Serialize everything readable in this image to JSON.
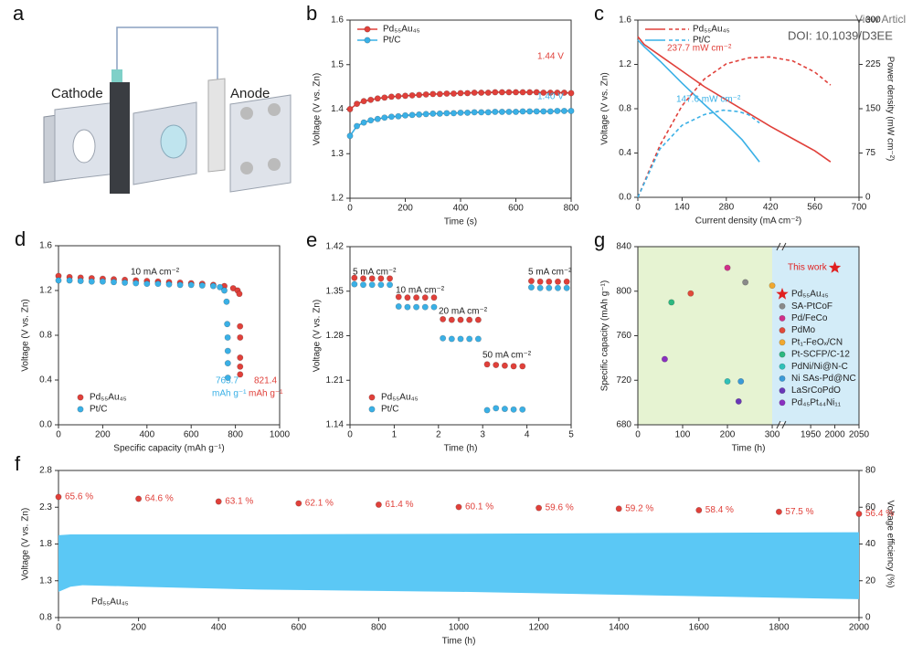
{
  "header": {
    "link": "View Articl",
    "doi": "DOI: 10.1039/D3EE"
  },
  "illustration": {
    "panel": "a",
    "labels": [
      "Cathode",
      "Anode"
    ]
  },
  "chart_data": [
    {
      "panel": "b",
      "type": "line",
      "xlabel": "Time (s)",
      "ylabel": "Voltage (V vs. Zn)",
      "xlim": [
        0,
        800
      ],
      "xticks": [
        0,
        200,
        400,
        600,
        800
      ],
      "ylim": [
        1.2,
        1.6
      ],
      "yticks": [
        1.2,
        1.3,
        1.4,
        1.5,
        1.6
      ],
      "legend": "upper left",
      "x": [
        0,
        25,
        50,
        75,
        100,
        125,
        150,
        175,
        200,
        225,
        250,
        275,
        300,
        325,
        350,
        375,
        400,
        425,
        450,
        475,
        500,
        525,
        550,
        575,
        600,
        625,
        650,
        675,
        700,
        725,
        750,
        775,
        800
      ],
      "series": [
        {
          "name": "Pd₅₅Au₄₅",
          "color": "#e0403a",
          "marker": "circle",
          "values": [
            1.4,
            1.412,
            1.418,
            1.421,
            1.424,
            1.426,
            1.428,
            1.429,
            1.43,
            1.431,
            1.432,
            1.433,
            1.434,
            1.434,
            1.435,
            1.435,
            1.436,
            1.436,
            1.437,
            1.437,
            1.437,
            1.438,
            1.438,
            1.438,
            1.438,
            1.438,
            1.438,
            1.438,
            1.437,
            1.437,
            1.437,
            1.437,
            1.436
          ]
        },
        {
          "name": "Pt/C",
          "color": "#3ab0e6",
          "marker": "circle",
          "values": [
            1.34,
            1.362,
            1.37,
            1.375,
            1.378,
            1.381,
            1.383,
            1.384,
            1.386,
            1.387,
            1.388,
            1.389,
            1.39,
            1.39,
            1.391,
            1.391,
            1.392,
            1.392,
            1.393,
            1.393,
            1.393,
            1.394,
            1.394,
            1.394,
            1.394,
            1.395,
            1.395,
            1.395,
            1.395,
            1.395,
            1.396,
            1.396,
            1.396
          ]
        }
      ],
      "annotations": [
        {
          "text": "1.44 V",
          "color": "#e0403a"
        },
        {
          "text": "1.40 V",
          "color": "#3ab0e6"
        }
      ]
    },
    {
      "panel": "c",
      "type": "line",
      "xlabel": "Current density (mA cm⁻²)",
      "ylabel": "Voltage (V vs. Zn)",
      "y2label": "Power density (mW cm⁻²)",
      "xlim": [
        0,
        700
      ],
      "xticks": [
        0,
        140,
        280,
        420,
        560,
        700
      ],
      "ylim": [
        0,
        1.6
      ],
      "yticks": [
        {
          "value": 0,
          "label": "0.0"
        },
        0.4,
        0.8,
        1.2,
        1.6
      ],
      "y2lim": [
        0,
        300
      ],
      "y2ticks": [
        0,
        75,
        150,
        225,
        300
      ],
      "legend": "upper left",
      "series": [
        {
          "name": "Pd₅₅Au₄₅",
          "color": "#e0403a",
          "x": [
            0,
            20,
            70,
            140,
            210,
            280,
            350,
            420,
            490,
            560,
            610
          ],
          "values": [
            1.45,
            1.38,
            1.28,
            1.14,
            1.0,
            0.88,
            0.76,
            0.64,
            0.53,
            0.42,
            0.32
          ]
        },
        {
          "name": "Pt/C",
          "color": "#3ab0e6",
          "x": [
            0,
            20,
            70,
            140,
            210,
            280,
            330,
            385
          ],
          "values": [
            1.42,
            1.36,
            1.23,
            1.03,
            0.84,
            0.66,
            0.52,
            0.32
          ]
        },
        {
          "color": "#e0403a",
          "dashed": true,
          "axis": "y2",
          "x": [
            0,
            70,
            140,
            210,
            280,
            350,
            415,
            490,
            560,
            610
          ],
          "values": [
            0,
            88,
            155,
            200,
            226,
            236,
            237.7,
            231,
            212,
            190
          ]
        },
        {
          "color": "#3ab0e6",
          "dashed": true,
          "axis": "y2",
          "x": [
            0,
            70,
            140,
            210,
            270,
            320,
            350,
            385
          ],
          "values": [
            0,
            82,
            122,
            140,
            147.6,
            145,
            140,
            126
          ]
        }
      ],
      "annotations": [
        {
          "text": "237.7 mW cm⁻²",
          "color": "#e0403a"
        },
        {
          "text": "147.6 mW cm⁻²",
          "color": "#3ab0e6"
        }
      ]
    },
    {
      "panel": "d",
      "type": "scatter",
      "xlabel": "Specific capacity (mAh g⁻¹)",
      "ylabel": "Voltage (V vs. Zn)",
      "xlim": [
        0,
        1000
      ],
      "xticks": [
        0,
        200,
        400,
        600,
        800,
        1000
      ],
      "ylim": [
        0,
        1.6
      ],
      "yticks": [
        {
          "value": 0,
          "label": "0.0"
        },
        0.4,
        0.8,
        1.2,
        1.6
      ],
      "legend": "lower left",
      "series": [
        {
          "name": "Pd₅₅Au₄₅",
          "color": "#e0403a",
          "marker": "circle",
          "x": [
            0,
            50,
            100,
            150,
            200,
            250,
            300,
            350,
            400,
            450,
            500,
            550,
            600,
            650,
            700,
            750,
            790,
            810,
            818,
            821,
            821.4,
            821.4,
            821.4,
            821.4
          ],
          "values": [
            1.33,
            1.32,
            1.315,
            1.31,
            1.305,
            1.3,
            1.295,
            1.29,
            1.285,
            1.28,
            1.275,
            1.27,
            1.265,
            1.26,
            1.25,
            1.24,
            1.22,
            1.2,
            1.17,
            0.88,
            0.78,
            0.6,
            0.52,
            0.45
          ]
        },
        {
          "name": "Pt/C",
          "color": "#3ab0e6",
          "marker": "circle",
          "x": [
            0,
            50,
            100,
            150,
            200,
            250,
            300,
            350,
            400,
            450,
            500,
            550,
            600,
            650,
            700,
            730,
            750,
            760,
            763,
            765,
            765.7,
            765.7,
            765.7
          ],
          "values": [
            1.29,
            1.29,
            1.285,
            1.28,
            1.28,
            1.275,
            1.27,
            1.265,
            1.26,
            1.26,
            1.255,
            1.25,
            1.25,
            1.245,
            1.24,
            1.23,
            1.2,
            1.1,
            0.9,
            0.78,
            0.66,
            0.55,
            0.42
          ]
        }
      ],
      "annotations": [
        {
          "text": "10 mA cm⁻²",
          "color": "#222"
        },
        {
          "text": "765.7",
          "color": "#3ab0e6"
        },
        {
          "text": "mAh g⁻¹",
          "color": "#3ab0e6"
        },
        {
          "text": "821.4",
          "color": "#e0403a"
        },
        {
          "text": "mAh g⁻¹",
          "color": "#e0403a"
        }
      ]
    },
    {
      "panel": "e",
      "type": "scatter",
      "xlabel": "Time (h)",
      "ylabel": "Voltage (V vs. Zn)",
      "xlim": [
        0,
        5
      ],
      "xticks": [
        0,
        1,
        2,
        3,
        4,
        5
      ],
      "ylim": [
        1.14,
        1.42
      ],
      "yticks": [
        1.14,
        1.21,
        1.28,
        1.35,
        1.42
      ],
      "legend": "lower left",
      "x": [
        0.1,
        0.3,
        0.5,
        0.7,
        0.9,
        1.1,
        1.3,
        1.5,
        1.7,
        1.9,
        2.1,
        2.3,
        2.5,
        2.7,
        2.9,
        3.1,
        3.3,
        3.5,
        3.7,
        3.9,
        4.1,
        4.3,
        4.5,
        4.7,
        4.9
      ],
      "series": [
        {
          "name": "Pd₅₅Au₄₅",
          "color": "#e0403a",
          "marker": "circle",
          "values": [
            1.371,
            1.37,
            1.37,
            1.37,
            1.37,
            1.341,
            1.34,
            1.34,
            1.34,
            1.34,
            1.306,
            1.305,
            1.305,
            1.305,
            1.305,
            1.235,
            1.234,
            1.233,
            1.232,
            1.232,
            1.366,
            1.365,
            1.365,
            1.365,
            1.365
          ]
        },
        {
          "name": "Pt/C",
          "color": "#3ab0e6",
          "marker": "circle",
          "values": [
            1.361,
            1.36,
            1.36,
            1.36,
            1.36,
            1.326,
            1.325,
            1.325,
            1.325,
            1.325,
            1.276,
            1.275,
            1.275,
            1.275,
            1.275,
            1.163,
            1.166,
            1.165,
            1.164,
            1.164,
            1.356,
            1.355,
            1.355,
            1.355,
            1.355
          ]
        }
      ],
      "annotations": [
        {
          "text": "5 mA cm⁻²",
          "color": "#222"
        },
        {
          "text": "10 mA cm⁻²",
          "color": "#222"
        },
        {
          "text": "20 mA cm⁻²",
          "color": "#222"
        },
        {
          "text": "50 mA cm⁻²",
          "color": "#222"
        },
        {
          "text": "5 mA cm⁻²",
          "color": "#222"
        }
      ]
    },
    {
      "panel": "g",
      "type": "scatter",
      "xlabel": "Time (h)",
      "ylabel": "Specific capacity (mAh g⁻¹)",
      "xlim": [
        [
          0,
          316
        ],
        [
          1893,
          2050
        ]
      ],
      "xticks": [
        0,
        100,
        200,
        300,
        1950,
        2000,
        2050
      ],
      "ylim": [
        680,
        840
      ],
      "yticks": [
        680,
        720,
        760,
        800,
        840
      ],
      "legend": "right",
      "series": [
        {
          "name": "Pd₅₅Au₄₅",
          "color": "#e02020",
          "marker": "star",
          "x": [
            2000
          ],
          "values": [
            821
          ]
        },
        {
          "name": "SA-PtCoF",
          "color": "#8a8a8a",
          "marker": "circle",
          "x": [
            240
          ],
          "values": [
            808
          ]
        },
        {
          "name": "Pd/FeCo",
          "color": "#d0308a",
          "marker": "circle",
          "x": [
            200
          ],
          "values": [
            821
          ]
        },
        {
          "name": "PdMo",
          "color": "#e04a3a",
          "marker": "circle",
          "x": [
            118
          ],
          "values": [
            798
          ]
        },
        {
          "name": "Pt₁-FeOₓ/CN",
          "color": "#f0a830",
          "marker": "circle",
          "x": [
            300
          ],
          "values": [
            805
          ]
        },
        {
          "name": "Pt-SCFP/C-12",
          "color": "#2cb880",
          "marker": "circle",
          "x": [
            75
          ],
          "values": [
            790
          ]
        },
        {
          "name": "PdNi/Ni@N-C",
          "color": "#30c0b8",
          "marker": "circle",
          "x": [
            200
          ],
          "values": [
            719
          ]
        },
        {
          "name": "Ni SAs-Pd@NC",
          "color": "#3a9ad8",
          "marker": "circle",
          "x": [
            230
          ],
          "values": [
            719
          ]
        },
        {
          "name": "LaSrCoPdO",
          "color": "#6a38b8",
          "marker": "circle",
          "x": [
            225
          ],
          "values": [
            701
          ]
        },
        {
          "name": "Pd₄₅Pt₄₄Ni₁₁",
          "color": "#8a30c0",
          "marker": "circle",
          "x": [
            60
          ],
          "values": [
            739
          ]
        }
      ],
      "annotations": [
        {
          "text": "This work",
          "color": "#e02020"
        }
      ]
    },
    {
      "panel": "f",
      "type": "area",
      "xlabel": "Time (h)",
      "ylabel": "Voltage (V vs. Zn)",
      "y2label": "Voltage efficiency (%)",
      "xlim": [
        0,
        2000
      ],
      "xticks": [
        0,
        200,
        400,
        600,
        800,
        1000,
        1200,
        1400,
        1600,
        1800,
        2000
      ],
      "ylim": [
        0.8,
        2.8
      ],
      "yticks": [
        0.8,
        1.3,
        1.8,
        2.3,
        2.8
      ],
      "y2lim": [
        0,
        80
      ],
      "y2ticks": [
        0,
        20,
        40,
        60,
        80
      ],
      "series": [
        {
          "color": "#5bc8f5",
          "x": [
            0,
            30,
            60,
            200,
            500,
            1000,
            1500,
            2000
          ],
          "values": [
            1.92,
            1.93,
            1.93,
            1.93,
            1.93,
            1.94,
            1.95,
            1.96
          ],
          "low": [
            1.15,
            1.22,
            1.24,
            1.22,
            1.18,
            1.15,
            1.1,
            1.05
          ]
        },
        {
          "type": "scatter",
          "axis": "y2",
          "color": "#e0403a",
          "marker": "circle",
          "x": [
            0,
            200,
            400,
            600,
            800,
            1000,
            1200,
            1400,
            1600,
            1800,
            2000
          ],
          "values": [
            65.6,
            64.6,
            63.1,
            62.1,
            61.4,
            60.1,
            59.6,
            59.2,
            58.4,
            57.5,
            56.4
          ],
          "value_labels": [
            "65.6 %",
            "64.6 %",
            "63.1 %",
            "62.1 %",
            "61.4 %",
            "60.1 %",
            "59.6 %",
            "59.2 %",
            "58.4 %",
            "57.5 %",
            "56.4 %"
          ]
        }
      ],
      "annotations": [
        {
          "text": "Pd₅₅Au₄₅",
          "color": "#222"
        }
      ]
    }
  ]
}
